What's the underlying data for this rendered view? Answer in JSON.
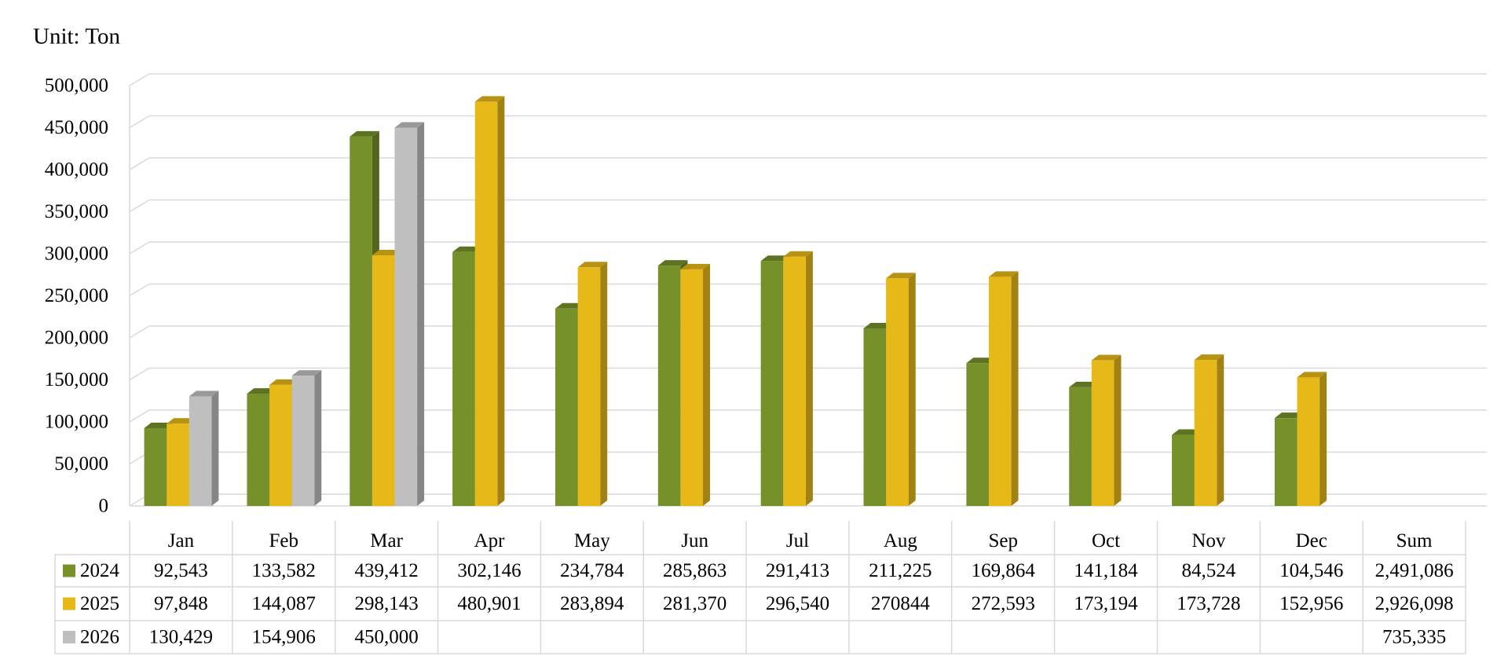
{
  "chart_data": {
    "type": "bar3d",
    "title": "Unit: Ton",
    "categories": [
      "Jan",
      "Feb",
      "Mar",
      "Apr",
      "May",
      "Jun",
      "Jul",
      "Aug",
      "Sep",
      "Oct",
      "Nov",
      "Dec"
    ],
    "sum_header": "Sum",
    "series": [
      {
        "name": "2024",
        "color": "#76902a",
        "values": [
          92543,
          133582,
          439412,
          302146,
          234784,
          285863,
          291413,
          211225,
          169864,
          141184,
          84524,
          104546
        ],
        "value_labels": [
          "92,543",
          "133,582",
          "439,412",
          "302,146",
          "234,784",
          "285,863",
          "291,413",
          "211,225",
          "169,864",
          "141,184",
          "84,524",
          "104,546"
        ],
        "sum": 2491086,
        "sum_label": "2,491,086"
      },
      {
        "name": "2025",
        "color": "#e6b818",
        "values": [
          97848,
          144087,
          298143,
          480901,
          283894,
          281370,
          296540,
          270844,
          272593,
          173194,
          173728,
          152956
        ],
        "value_labels": [
          "97,848",
          "144,087",
          "298,143",
          "480,901",
          "283,894",
          "281,370",
          "296,540",
          "270844",
          "272,593",
          "173,194",
          "173,728",
          "152,956"
        ],
        "sum": 2926098,
        "sum_label": "2,926,098"
      },
      {
        "name": "2026",
        "color": "#bfbfbf",
        "values": [
          130429,
          154906,
          450000,
          null,
          null,
          null,
          null,
          null,
          null,
          null,
          null,
          null
        ],
        "value_labels": [
          "130,429",
          "154,906",
          "450,000",
          null,
          null,
          null,
          null,
          null,
          null,
          null,
          null,
          null
        ],
        "sum": 735335,
        "sum_label": "735,335"
      }
    ],
    "ylim": [
      0,
      500000
    ],
    "yticks": [
      {
        "value": 0,
        "label": "0"
      },
      {
        "value": 50000,
        "label": "50,000"
      },
      {
        "value": 100000,
        "label": "100,000"
      },
      {
        "value": 150000,
        "label": "150,000"
      },
      {
        "value": 200000,
        "label": "200,000"
      },
      {
        "value": 250000,
        "label": "250,000"
      },
      {
        "value": 300000,
        "label": "300,000"
      },
      {
        "value": 350000,
        "label": "350,000"
      },
      {
        "value": 400000,
        "label": "400,000"
      },
      {
        "value": 450000,
        "label": "450,000"
      },
      {
        "value": 500000,
        "label": "500,000"
      }
    ],
    "grid": true
  }
}
